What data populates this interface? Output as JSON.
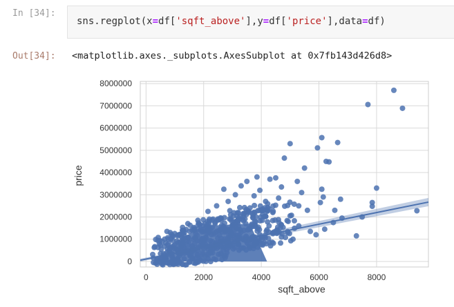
{
  "cell": {
    "in_prompt": "In [34]:",
    "out_prompt": "Out[34]:",
    "code": {
      "fn": "sns.regplot(",
      "x_kw": "x",
      "eq1": "=",
      "x_pre": "df[",
      "x_str": "'sqft_above'",
      "x_post": "],",
      "y_kw": "y",
      "eq2": "=",
      "y_pre": "df[",
      "y_str": "'price'",
      "y_post": "],",
      "data_kw": "data",
      "eq3": "=",
      "data_val": "df)"
    },
    "output_text": "<matplotlib.axes._subplots.AxesSubplot at 0x7fb143d426d8>"
  },
  "colors": {
    "points": "#4c72b0",
    "regression_line": "#4c72b0",
    "grid": "#d9d9d9",
    "frame": "#cccccc"
  },
  "chart_data": {
    "type": "scatter",
    "title": "",
    "xlabel": "sqft_above",
    "ylabel": "price",
    "xlim": [
      -200,
      9800
    ],
    "ylim": [
      -250000,
      8100000
    ],
    "x_ticks": [
      0,
      2000,
      4000,
      6000,
      8000
    ],
    "x_tick_labels": [
      "0",
      "2000",
      "4000",
      "6000",
      "8000"
    ],
    "y_ticks": [
      0,
      1000000,
      2000000,
      3000000,
      4000000,
      5000000,
      6000000,
      7000000,
      8000000
    ],
    "y_tick_labels": [
      "0",
      "1000000",
      "2000000",
      "3000000",
      "4000000",
      "5000000",
      "6000000",
      "7000000",
      "8000000"
    ],
    "grid": true,
    "legend": "none",
    "regression_line": {
      "x": [
        -200,
        9800
      ],
      "y": [
        55000,
        2670000
      ]
    },
    "dense_cloud": [
      {
        "x": 600,
        "y": 150000
      },
      {
        "x": 800,
        "y": 300000
      },
      {
        "x": 1000,
        "y": 420000
      },
      {
        "x": 1200,
        "y": 380000
      },
      {
        "x": 1400,
        "y": 520000
      },
      {
        "x": 1600,
        "y": 600000
      },
      {
        "x": 1800,
        "y": 700000
      },
      {
        "x": 2000,
        "y": 800000
      },
      {
        "x": 2200,
        "y": 950000
      },
      {
        "x": 2400,
        "y": 1000000
      },
      {
        "x": 2600,
        "y": 1150000
      },
      {
        "x": 2800,
        "y": 1200000
      },
      {
        "x": 3000,
        "y": 1300000
      },
      {
        "x": 3200,
        "y": 1400000
      },
      {
        "x": 3400,
        "y": 1450000
      },
      {
        "x": 3600,
        "y": 1500000
      },
      {
        "x": 3800,
        "y": 1550000
      },
      {
        "x": 4000,
        "y": 1600000
      },
      {
        "x": 4400,
        "y": 1700000
      },
      {
        "x": 4800,
        "y": 1800000
      }
    ],
    "points": [
      {
        "x": 8600,
        "y": 7700000
      },
      {
        "x": 7700,
        "y": 7060000
      },
      {
        "x": 8900,
        "y": 6890000
      },
      {
        "x": 6100,
        "y": 5570000
      },
      {
        "x": 6650,
        "y": 5350000
      },
      {
        "x": 5000,
        "y": 5300000
      },
      {
        "x": 5950,
        "y": 5110000
      },
      {
        "x": 4800,
        "y": 4650000
      },
      {
        "x": 6250,
        "y": 4500000
      },
      {
        "x": 6350,
        "y": 4480000
      },
      {
        "x": 5500,
        "y": 4200000
      },
      {
        "x": 5250,
        "y": 3600000
      },
      {
        "x": 4300,
        "y": 3700000
      },
      {
        "x": 3850,
        "y": 3800000
      },
      {
        "x": 4500,
        "y": 3760000
      },
      {
        "x": 3500,
        "y": 3600000
      },
      {
        "x": 3300,
        "y": 3400000
      },
      {
        "x": 4700,
        "y": 3350000
      },
      {
        "x": 2700,
        "y": 3250000
      },
      {
        "x": 3950,
        "y": 3200000
      },
      {
        "x": 5400,
        "y": 3100000
      },
      {
        "x": 6100,
        "y": 3250000
      },
      {
        "x": 6150,
        "y": 2900000
      },
      {
        "x": 8000,
        "y": 3300000
      },
      {
        "x": 7850,
        "y": 2650000
      },
      {
        "x": 7850,
        "y": 2480000
      },
      {
        "x": 6750,
        "y": 2800000
      },
      {
        "x": 6050,
        "y": 2650000
      },
      {
        "x": 5300,
        "y": 2500000
      },
      {
        "x": 9400,
        "y": 2280000
      },
      {
        "x": 7500,
        "y": 2000000
      },
      {
        "x": 6550,
        "y": 2300000
      },
      {
        "x": 6800,
        "y": 1950000
      },
      {
        "x": 6500,
        "y": 1750000
      },
      {
        "x": 7300,
        "y": 1150000
      },
      {
        "x": 6200,
        "y": 1450000
      },
      {
        "x": 5700,
        "y": 1350000
      },
      {
        "x": 5900,
        "y": 1200000
      },
      {
        "x": 5100,
        "y": 1000000
      },
      {
        "x": 4600,
        "y": 2850000
      },
      {
        "x": 4150,
        "y": 2700000
      },
      {
        "x": 3750,
        "y": 2950000
      },
      {
        "x": 3100,
        "y": 3000000
      },
      {
        "x": 2850,
        "y": 2700000
      },
      {
        "x": 2450,
        "y": 2500000
      },
      {
        "x": 2150,
        "y": 2250000
      },
      {
        "x": 5000,
        "y": 2050000
      },
      {
        "x": 4400,
        "y": 2200000
      },
      {
        "x": 1450,
        "y": 1700000
      },
      {
        "x": 1100,
        "y": 1150000
      },
      {
        "x": 500,
        "y": 350000
      },
      {
        "x": 380,
        "y": 120000
      },
      {
        "x": 700,
        "y": 90000
      },
      {
        "x": 1800,
        "y": 180000
      },
      {
        "x": 2600,
        "y": 300000
      },
      {
        "x": 3300,
        "y": 600000
      },
      {
        "x": 4100,
        "y": 850000
      },
      {
        "x": 4700,
        "y": 1100000
      },
      {
        "x": 5300,
        "y": 1600000
      },
      {
        "x": 5600,
        "y": 2300000
      }
    ]
  }
}
